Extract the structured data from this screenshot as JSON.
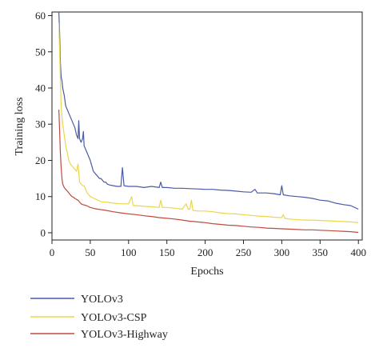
{
  "chart_data": {
    "type": "line",
    "xlabel": "Epochs",
    "ylabel": "Training loss",
    "xlim": [
      0,
      405
    ],
    "ylim": [
      -2,
      61
    ],
    "xticks": [
      0,
      50,
      100,
      150,
      200,
      250,
      300,
      350,
      400
    ],
    "yticks": [
      0,
      10,
      20,
      30,
      40,
      50,
      60
    ],
    "legend_position": "bottom-left, below plot",
    "series": [
      {
        "name": "YOLOv3",
        "color": "#4a5aa8",
        "points": [
          [
            9,
            61
          ],
          [
            10,
            55
          ],
          [
            11,
            47
          ],
          [
            12,
            43
          ],
          [
            13,
            42
          ],
          [
            14,
            40
          ],
          [
            16,
            38
          ],
          [
            18,
            35
          ],
          [
            20,
            34
          ],
          [
            22,
            33
          ],
          [
            24,
            32
          ],
          [
            26,
            31
          ],
          [
            28,
            30
          ],
          [
            30,
            29
          ],
          [
            32,
            27
          ],
          [
            34,
            26
          ],
          [
            35,
            31
          ],
          [
            36,
            26
          ],
          [
            38,
            25
          ],
          [
            40,
            26
          ],
          [
            41,
            28
          ],
          [
            42,
            24
          ],
          [
            44,
            23
          ],
          [
            46,
            22
          ],
          [
            48,
            21
          ],
          [
            50,
            20
          ],
          [
            52,
            18.5
          ],
          [
            54,
            17
          ],
          [
            56,
            16.5
          ],
          [
            58,
            16
          ],
          [
            60,
            15.5
          ],
          [
            62,
            15
          ],
          [
            64,
            15
          ],
          [
            66,
            14.5
          ],
          [
            68,
            14
          ],
          [
            70,
            14
          ],
          [
            72,
            13.5
          ],
          [
            75,
            13.2
          ],
          [
            80,
            13
          ],
          [
            85,
            12.8
          ],
          [
            90,
            12.8
          ],
          [
            92,
            18
          ],
          [
            94,
            13
          ],
          [
            100,
            12.8
          ],
          [
            110,
            12.8
          ],
          [
            120,
            12.5
          ],
          [
            130,
            12.8
          ],
          [
            140,
            12.5
          ],
          [
            142,
            14
          ],
          [
            144,
            12.5
          ],
          [
            150,
            12.5
          ],
          [
            160,
            12.3
          ],
          [
            170,
            12.3
          ],
          [
            180,
            12.2
          ],
          [
            190,
            12.1
          ],
          [
            200,
            12
          ],
          [
            210,
            12
          ],
          [
            220,
            11.8
          ],
          [
            230,
            11.7
          ],
          [
            240,
            11.5
          ],
          [
            250,
            11.3
          ],
          [
            260,
            11.2
          ],
          [
            265,
            12
          ],
          [
            268,
            11
          ],
          [
            280,
            11
          ],
          [
            290,
            10.8
          ],
          [
            298,
            10.5
          ],
          [
            300,
            13
          ],
          [
            302,
            10.5
          ],
          [
            310,
            10.2
          ],
          [
            320,
            10
          ],
          [
            330,
            9.8
          ],
          [
            340,
            9.5
          ],
          [
            350,
            9
          ],
          [
            360,
            8.8
          ],
          [
            370,
            8.2
          ],
          [
            380,
            7.8
          ],
          [
            390,
            7.5
          ],
          [
            400,
            6.5
          ]
        ]
      },
      {
        "name": "YOLOv3-CSP",
        "color": "#ecd64a",
        "points": [
          [
            9,
            58
          ],
          [
            10,
            50
          ],
          [
            11,
            42
          ],
          [
            12,
            35
          ],
          [
            13,
            32
          ],
          [
            14,
            30
          ],
          [
            16,
            27
          ],
          [
            18,
            24
          ],
          [
            20,
            22
          ],
          [
            22,
            20
          ],
          [
            24,
            19
          ],
          [
            26,
            18.5
          ],
          [
            28,
            18
          ],
          [
            30,
            17.5
          ],
          [
            32,
            17
          ],
          [
            34,
            19
          ],
          [
            36,
            14
          ],
          [
            38,
            13.5
          ],
          [
            40,
            13
          ],
          [
            42,
            13
          ],
          [
            44,
            12
          ],
          [
            46,
            11
          ],
          [
            48,
            10.5
          ],
          [
            50,
            10
          ],
          [
            55,
            9.5
          ],
          [
            60,
            9
          ],
          [
            65,
            8.5
          ],
          [
            70,
            8.5
          ],
          [
            80,
            8.2
          ],
          [
            90,
            8
          ],
          [
            100,
            8
          ],
          [
            104,
            10
          ],
          [
            106,
            7.5
          ],
          [
            110,
            7.5
          ],
          [
            120,
            7.3
          ],
          [
            130,
            7.2
          ],
          [
            140,
            7
          ],
          [
            142,
            9
          ],
          [
            144,
            7
          ],
          [
            150,
            7
          ],
          [
            160,
            6.8
          ],
          [
            170,
            6.5
          ],
          [
            175,
            8
          ],
          [
            178,
            6.5
          ],
          [
            180,
            6.5
          ],
          [
            182,
            9
          ],
          [
            184,
            6.2
          ],
          [
            190,
            6
          ],
          [
            200,
            6
          ],
          [
            210,
            5.8
          ],
          [
            220,
            5.5
          ],
          [
            230,
            5.3
          ],
          [
            240,
            5.2
          ],
          [
            250,
            5
          ],
          [
            260,
            4.8
          ],
          [
            270,
            4.6
          ],
          [
            280,
            4.5
          ],
          [
            290,
            4.3
          ],
          [
            300,
            4.2
          ],
          [
            302,
            5
          ],
          [
            304,
            4
          ],
          [
            310,
            3.8
          ],
          [
            320,
            3.6
          ],
          [
            330,
            3.5
          ],
          [
            340,
            3.5
          ],
          [
            350,
            3.4
          ],
          [
            360,
            3.3
          ],
          [
            370,
            3.2
          ],
          [
            380,
            3.1
          ],
          [
            390,
            3
          ],
          [
            400,
            2.8
          ]
        ]
      },
      {
        "name": "YOLOv3-Highway",
        "color": "#c04a3e",
        "points": [
          [
            9,
            34
          ],
          [
            10,
            28
          ],
          [
            11,
            22
          ],
          [
            12,
            18
          ],
          [
            13,
            15
          ],
          [
            14,
            13.5
          ],
          [
            16,
            12.5
          ],
          [
            18,
            12
          ],
          [
            20,
            11.5
          ],
          [
            22,
            11
          ],
          [
            24,
            10.5
          ],
          [
            26,
            10
          ],
          [
            28,
            9.8
          ],
          [
            30,
            9.5
          ],
          [
            32,
            9.2
          ],
          [
            34,
            9
          ],
          [
            36,
            8.5
          ],
          [
            38,
            8
          ],
          [
            40,
            7.8
          ],
          [
            45,
            7.5
          ],
          [
            50,
            7
          ],
          [
            55,
            6.7
          ],
          [
            60,
            6.5
          ],
          [
            70,
            6.2
          ],
          [
            80,
            5.8
          ],
          [
            90,
            5.5
          ],
          [
            100,
            5.2
          ],
          [
            110,
            5
          ],
          [
            120,
            4.7
          ],
          [
            130,
            4.5
          ],
          [
            140,
            4.2
          ],
          [
            150,
            4
          ],
          [
            160,
            3.8
          ],
          [
            170,
            3.5
          ],
          [
            180,
            3.2
          ],
          [
            190,
            3
          ],
          [
            200,
            2.8
          ],
          [
            210,
            2.5
          ],
          [
            220,
            2.3
          ],
          [
            230,
            2.1
          ],
          [
            240,
            2
          ],
          [
            250,
            1.8
          ],
          [
            260,
            1.6
          ],
          [
            270,
            1.5
          ],
          [
            280,
            1.3
          ],
          [
            290,
            1.2
          ],
          [
            300,
            1.1
          ],
          [
            310,
            1
          ],
          [
            320,
            0.9
          ],
          [
            330,
            0.8
          ],
          [
            340,
            0.8
          ],
          [
            350,
            0.7
          ],
          [
            360,
            0.6
          ],
          [
            370,
            0.5
          ],
          [
            380,
            0.4
          ],
          [
            390,
            0.3
          ],
          [
            400,
            0.1
          ]
        ]
      }
    ]
  }
}
